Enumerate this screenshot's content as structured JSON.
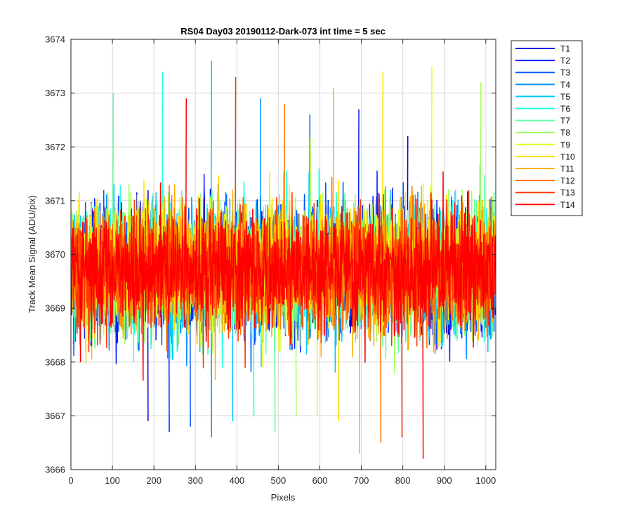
{
  "chart_data": {
    "type": "line",
    "title": "RS04 Day03 20190112-Dark-073 int time = 5 sec",
    "xlabel": "Pixels",
    "ylabel": "Track Mean Signal (ADU/pix)",
    "xlim": [
      0,
      1024
    ],
    "ylim": [
      3666,
      3674
    ],
    "xticks": [
      0,
      100,
      200,
      300,
      400,
      500,
      600,
      700,
      800,
      900,
      1000
    ],
    "yticks": [
      3666,
      3667,
      3668,
      3669,
      3670,
      3671,
      3672,
      3673,
      3674
    ],
    "grid": true,
    "legend_position": "outside-top-right",
    "x_start": 1,
    "x_end": 1024,
    "series": [
      {
        "name": "T1",
        "color": "#0000d8",
        "mean": 3669.7,
        "spread": 0.9,
        "min": 3666.9,
        "max": 3672.2
      },
      {
        "name": "T2",
        "color": "#0020ff",
        "mean": 3669.7,
        "spread": 0.9,
        "min": 3666.7,
        "max": 3672.7
      },
      {
        "name": "T3",
        "color": "#0058ff",
        "mean": 3669.7,
        "spread": 0.9,
        "min": 3666.8,
        "max": 3672.6
      },
      {
        "name": "T4",
        "color": "#0090ff",
        "mean": 3669.7,
        "spread": 0.9,
        "min": 3666.6,
        "max": 3672.9
      },
      {
        "name": "T5",
        "color": "#00c8ff",
        "mean": 3669.7,
        "spread": 0.9,
        "min": 3666.9,
        "max": 3673.6
      },
      {
        "name": "T6",
        "color": "#20ffe0",
        "mean": 3669.7,
        "spread": 0.9,
        "min": 3667.0,
        "max": 3673.4
      },
      {
        "name": "T7",
        "color": "#60ffa0",
        "mean": 3669.7,
        "spread": 0.88,
        "min": 3666.7,
        "max": 3673.0
      },
      {
        "name": "T8",
        "color": "#a0ff60",
        "mean": 3669.7,
        "spread": 0.88,
        "min": 3667.0,
        "max": 3673.2
      },
      {
        "name": "T9",
        "color": "#e0ff20",
        "mean": 3669.8,
        "spread": 0.88,
        "min": 3667.0,
        "max": 3673.5
      },
      {
        "name": "T10",
        "color": "#ffe000",
        "mean": 3669.8,
        "spread": 0.88,
        "min": 3666.9,
        "max": 3673.4
      },
      {
        "name": "T11",
        "color": "#ffb000",
        "mean": 3669.7,
        "spread": 0.88,
        "min": 3666.3,
        "max": 3673.1
      },
      {
        "name": "T12",
        "color": "#ff7000",
        "mean": 3669.7,
        "spread": 0.88,
        "min": 3666.5,
        "max": 3672.8
      },
      {
        "name": "T13",
        "color": "#ff3800",
        "mean": 3669.7,
        "spread": 0.88,
        "min": 3666.6,
        "max": 3673.3
      },
      {
        "name": "T14",
        "color": "#ff0000",
        "mean": 3669.7,
        "spread": 0.88,
        "min": 3666.2,
        "max": 3672.9
      }
    ]
  }
}
